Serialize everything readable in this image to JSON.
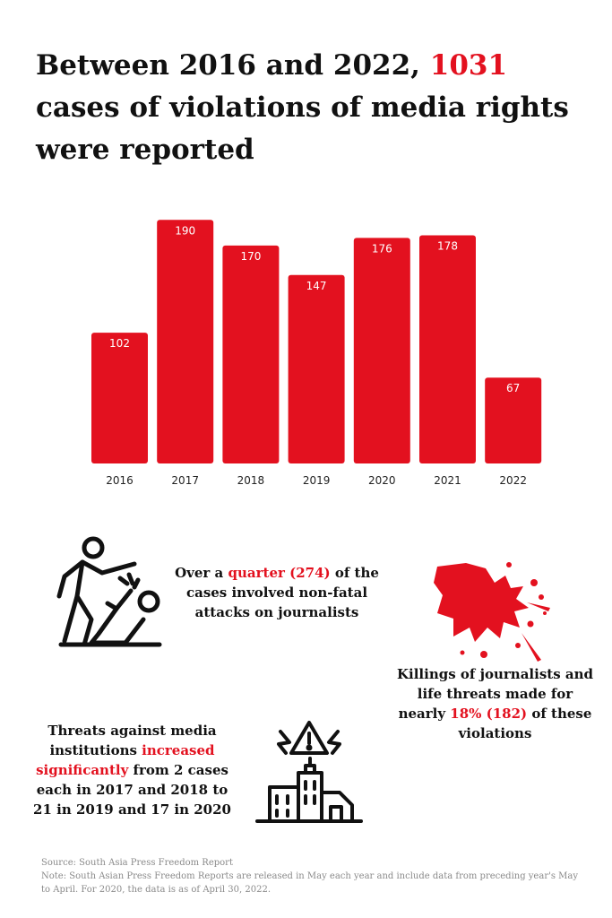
{
  "title": {
    "before": "Between 2016 and 2022, ",
    "highlight": "1031",
    "after": " cases of violations of media rights were reported"
  },
  "chart_data": {
    "type": "bar",
    "categories": [
      "2016",
      "2017",
      "2018",
      "2019",
      "2020",
      "2021",
      "2022"
    ],
    "values": [
      102,
      190,
      170,
      147,
      176,
      178,
      67
    ],
    "ylim": [
      0,
      200
    ],
    "grid": false,
    "legend": "none",
    "bar_color": "#e3111f"
  },
  "facts": {
    "attacks": {
      "before": "Over a  ",
      "highlight": "quarter (274)",
      "after": " of the cases involved non-fatal attacks on journalists"
    },
    "killings": {
      "before": "Killings of journalists and life threats made for nearly ",
      "highlight": "18% (182)",
      "after": " of these violations"
    },
    "threats": {
      "before": "Threats against media institutions ",
      "highlight": "increased significantly",
      "after": " from 2 cases each in 2017 and 2018 to 21 in 2019 and 17 in 2020"
    }
  },
  "icons": {
    "attack": "assault-icon",
    "blood": "blood-splatter-icon",
    "buildings": "building-warning-icon"
  },
  "accent_color": "#e3111f",
  "source": {
    "line1": "Source: South Asia Press Freedom Report",
    "line2": "Note: South Asian Press Freedom Reports are released in May each year and include data from preceding year's May to April. For 2020, the data is as of April 30, 2022."
  }
}
